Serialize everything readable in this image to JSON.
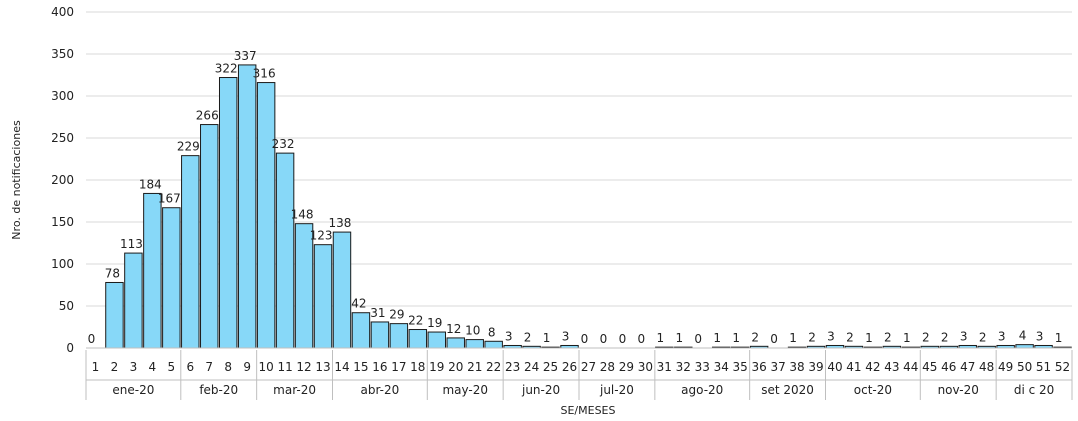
{
  "chart_data": {
    "type": "bar",
    "xlabel": "SE/MESES",
    "ylabel": "Nro. de notificaciones",
    "ylim": [
      0,
      400
    ],
    "yticks": [
      0,
      50,
      100,
      150,
      200,
      250,
      300,
      350,
      400
    ],
    "grid": true,
    "bar_color": "#87D8F8",
    "categories": [
      "1",
      "2",
      "3",
      "4",
      "5",
      "6",
      "7",
      "8",
      "9",
      "10",
      "11",
      "12",
      "13",
      "14",
      "15",
      "16",
      "17",
      "18",
      "19",
      "20",
      "21",
      "22",
      "23",
      "24",
      "25",
      "26",
      "27",
      "28",
      "29",
      "30",
      "31",
      "32",
      "33",
      "34",
      "35",
      "36",
      "37",
      "38",
      "39",
      "40",
      "41",
      "42",
      "43",
      "44",
      "45",
      "46",
      "47",
      "48",
      "49",
      "50",
      "51",
      "52"
    ],
    "values": [
      0,
      78,
      113,
      184,
      167,
      229,
      266,
      322,
      337,
      316,
      232,
      148,
      123,
      138,
      42,
      31,
      29,
      22,
      19,
      12,
      10,
      8,
      3,
      2,
      1,
      3,
      0,
      0,
      0,
      0,
      1,
      1,
      0,
      1,
      1,
      2,
      0,
      1,
      2,
      3,
      2,
      1,
      2,
      1,
      2,
      2,
      3,
      2,
      3,
      4,
      3,
      1
    ],
    "months": [
      {
        "label": "ene-20",
        "start": 1,
        "end": 5
      },
      {
        "label": "feb-20",
        "start": 6,
        "end": 9
      },
      {
        "label": "mar-20",
        "start": 10,
        "end": 13
      },
      {
        "label": "abr-20",
        "start": 14,
        "end": 18
      },
      {
        "label": "may-20",
        "start": 19,
        "end": 22
      },
      {
        "label": "jun-20",
        "start": 23,
        "end": 26
      },
      {
        "label": "jul-20",
        "start": 27,
        "end": 30
      },
      {
        "label": "ago-20",
        "start": 31,
        "end": 35
      },
      {
        "label": "set 2020",
        "start": 36,
        "end": 39
      },
      {
        "label": "oct-20",
        "start": 40,
        "end": 44
      },
      {
        "label": "nov-20",
        "start": 45,
        "end": 48
      },
      {
        "label": "di c 20",
        "start": 49,
        "end": 52
      }
    ]
  }
}
